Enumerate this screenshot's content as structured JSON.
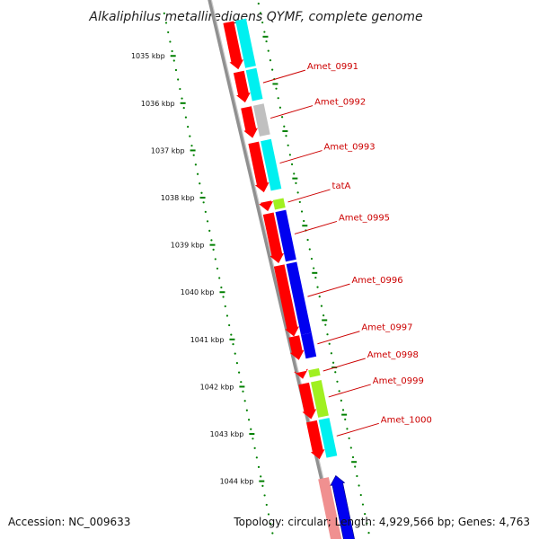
{
  "title": "Alkaliphilus metalliredigens QYMF, complete genome",
  "footer": {
    "accession": "Accession: NC_009633",
    "topology": "Topology: circular; Length: 4,929,566 bp; Genes: 4,763"
  },
  "colors": {
    "cds_red": "#ff0000",
    "cds_red_light": "#f09090",
    "cog_cyan": "#00f0f0",
    "cog_gray": "#c0c0c0",
    "cog_green": "#a0f020",
    "cog_blue": "#0000f0",
    "backbone": "#909090",
    "tick_green": "#008000",
    "label_red": "#cc0000"
  },
  "kbp_ticks": [
    "1035 kbp",
    "1036 kbp",
    "1037 kbp",
    "1038 kbp",
    "1039 kbp",
    "1040 kbp",
    "1041 kbp",
    "1042 kbp",
    "1043 kbp",
    "1044 kbp"
  ],
  "genes": [
    {
      "name": "",
      "start_kbp": 1034.55,
      "end_kbp": 1035.55,
      "strand": 1,
      "cog": "cyan"
    },
    {
      "name": "Amet_0991",
      "start_kbp": 1035.6,
      "end_kbp": 1036.25,
      "strand": 1,
      "cog": "cyan"
    },
    {
      "name": "Amet_0992",
      "start_kbp": 1036.35,
      "end_kbp": 1037.0,
      "strand": 1,
      "cog": "gray"
    },
    {
      "name": "Amet_0993",
      "start_kbp": 1037.1,
      "end_kbp": 1038.15,
      "strand": 1,
      "cog": "cyan"
    },
    {
      "name": "tatA",
      "start_kbp": 1038.35,
      "end_kbp": 1038.55,
      "strand": 1,
      "cog": "green"
    },
    {
      "name": "Amet_0995",
      "start_kbp": 1038.6,
      "end_kbp": 1039.65,
      "strand": 1,
      "cog": "blue"
    },
    {
      "name": "Amet_0996",
      "start_kbp": 1039.7,
      "end_kbp": 1041.2,
      "strand": 1,
      "cog": "blue"
    },
    {
      "name": "Amet_0997",
      "start_kbp": 1041.2,
      "end_kbp": 1041.7,
      "strand": 1,
      "cog": "blue"
    },
    {
      "name": "Amet_0998",
      "start_kbp": 1041.95,
      "end_kbp": 1042.1,
      "strand": 1,
      "cog": "green"
    },
    {
      "name": "Amet_0999",
      "start_kbp": 1042.2,
      "end_kbp": 1042.95,
      "strand": 1,
      "cog": "green"
    },
    {
      "name": "Amet_1000",
      "start_kbp": 1043.0,
      "end_kbp": 1043.8,
      "strand": 1,
      "cog": "cyan"
    },
    {
      "name": "",
      "start_kbp": 1044.2,
      "end_kbp": 1045.6,
      "strand": -1,
      "cog": "blue"
    }
  ]
}
